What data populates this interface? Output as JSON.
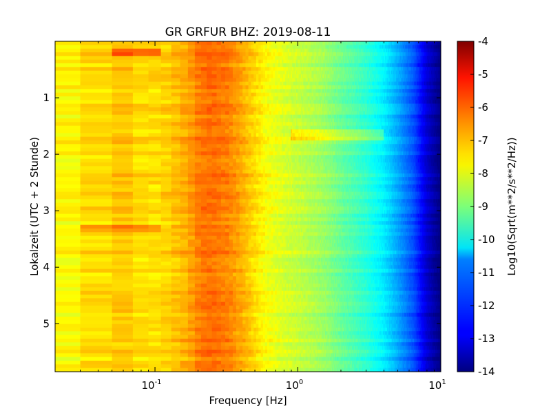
{
  "chart_data": {
    "type": "heatmap",
    "title": "GR GRFUR BHZ: 2019-08-11",
    "xlabel": "Frequency [Hz]",
    "ylabel": "Lokalzeit (UTC + 2 Stunde)",
    "x_scale": "log",
    "xlim": [
      0.02,
      10
    ],
    "ylim": [
      5.85,
      0
    ],
    "x_ticks": [
      {
        "base": "10",
        "exp": "-1",
        "value": 0.1
      },
      {
        "base": "10",
        "exp": "0",
        "value": 1
      },
      {
        "base": "10",
        "exp": "1",
        "value": 10
      }
    ],
    "y_ticks": [
      {
        "label": "1",
        "value": 1
      },
      {
        "label": "2",
        "value": 2
      },
      {
        "label": "3",
        "value": 3
      },
      {
        "label": "4",
        "value": 4
      },
      {
        "label": "5",
        "value": 5
      }
    ],
    "colorbar": {
      "label": "Log10(Sqrt(m**2/s**2/Hz))",
      "range": [
        -14,
        -4
      ],
      "colormap": "jet",
      "ticks": [
        "-4",
        "-5",
        "-6",
        "-7",
        "-8",
        "-9",
        "-10",
        "-11",
        "-12",
        "-13",
        "-14"
      ]
    },
    "freq_profile": {
      "freq": [
        0.02,
        0.04,
        0.06,
        0.09,
        0.12,
        0.17,
        0.21,
        0.25,
        0.32,
        0.4,
        0.5,
        0.6,
        0.8,
        1.0,
        1.5,
        2.0,
        3.0,
        4.0,
        5.0,
        6.5,
        8.0,
        10.0
      ],
      "value": [
        -7.7,
        -7.4,
        -7.2,
        -7.5,
        -7.3,
        -6.9,
        -6.4,
        -6.3,
        -6.5,
        -6.9,
        -7.4,
        -7.8,
        -8.1,
        -8.3,
        -8.7,
        -9.2,
        -9.8,
        -10.4,
        -11.1,
        -12.0,
        -13.2,
        -14.0
      ]
    },
    "events": [
      {
        "time": 0.18,
        "freq_range": [
          0.06,
          0.12
        ],
        "delta": 1.0
      },
      {
        "time": 3.3,
        "freq_range": [
          0.04,
          0.1
        ],
        "delta": 0.7
      },
      {
        "time": 1.65,
        "freq_range": [
          0.9,
          4.0
        ],
        "delta": 0.8
      }
    ]
  }
}
